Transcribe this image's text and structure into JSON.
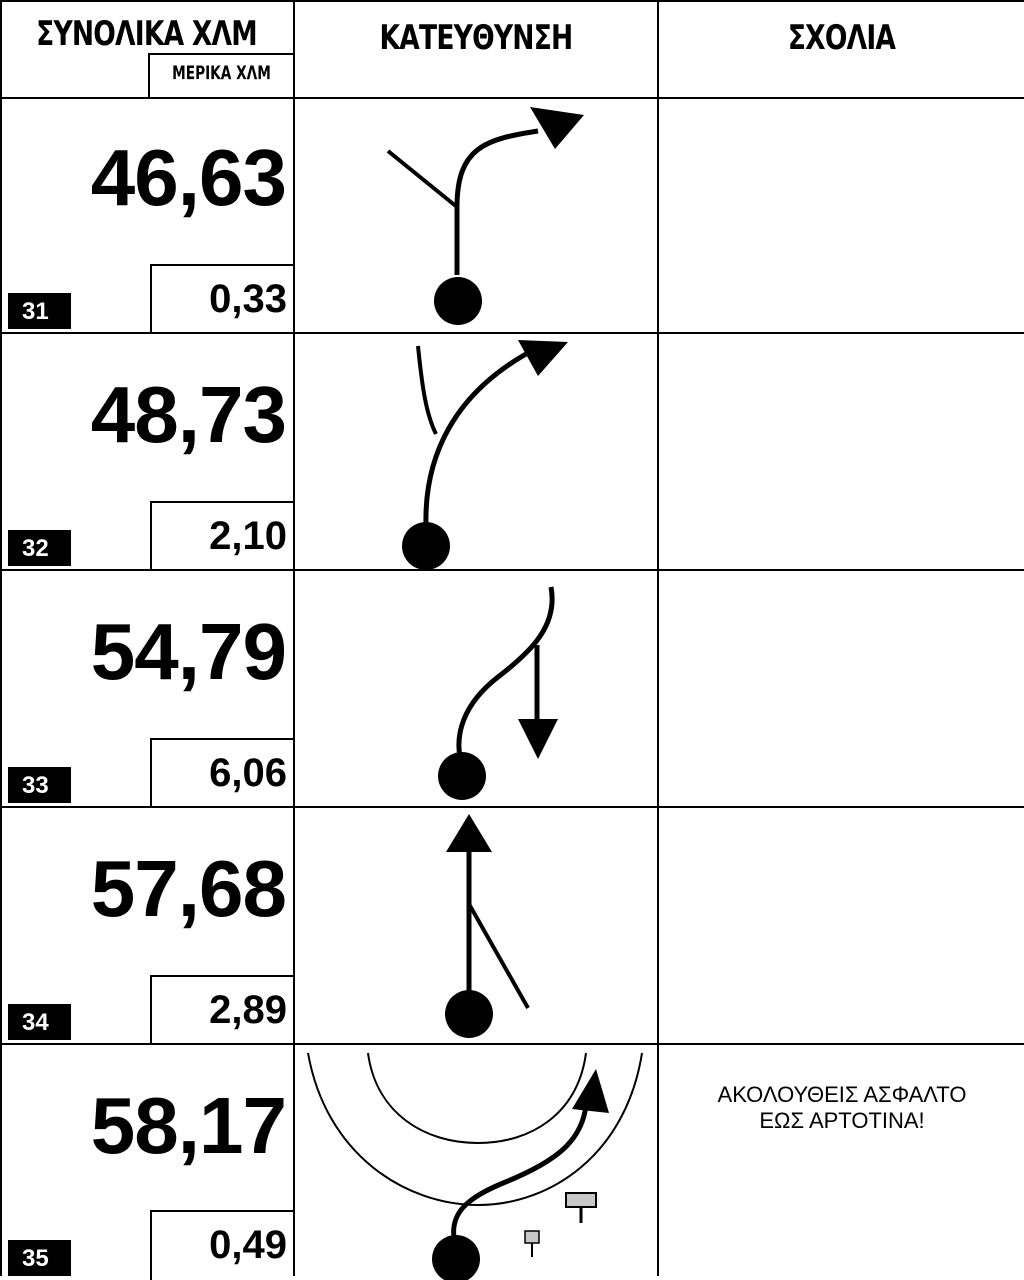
{
  "header": {
    "total_km": "ΣΥΝΟΛΙΚΑ ΧΛΜ",
    "partial_km": "ΜΕΡΙΚΑ ΧΛΜ",
    "direction": "ΚΑΤΕΥΘΥΝΣΗ",
    "comments": "ΣΧΟΛΙΑ"
  },
  "rows": [
    {
      "number": "31",
      "total": "46,63",
      "partial": "0,33",
      "direction_icon": "turn-right-at-fork-icon",
      "comment_line1": "",
      "comment_line2": ""
    },
    {
      "number": "32",
      "total": "48,73",
      "partial": "2,10",
      "direction_icon": "keep-right-at-fork-icon",
      "comment_line1": "",
      "comment_line2": ""
    },
    {
      "number": "33",
      "total": "54,79",
      "partial": "6,06",
      "direction_icon": "sharp-right-turn-icon",
      "comment_line1": "",
      "comment_line2": ""
    },
    {
      "number": "34",
      "total": "57,68",
      "partial": "2,89",
      "direction_icon": "straight-ahead-icon",
      "comment_line1": "",
      "comment_line2": ""
    },
    {
      "number": "35",
      "total": "58,17",
      "partial": "0,49",
      "direction_icon": "follow-asphalt-icon",
      "comment_line1": "ΑΚΟΛΟΥΘΕΙΣ ΑΣΦΑΛΤΟ",
      "comment_line2": "ΕΩΣ ΑΡΤΟΤΙΝΑ!"
    }
  ],
  "colors": {
    "ink": "#000000",
    "paper": "#ffffff",
    "sign_fill": "#c8c8c8"
  }
}
